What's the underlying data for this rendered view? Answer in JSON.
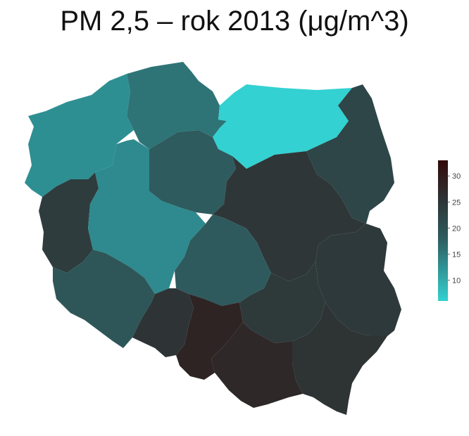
{
  "title": "PM 2,5 – rok 2013 (μg/m^3)",
  "colorbar": {
    "min": 6,
    "max": 33,
    "ticks": [
      "10",
      "15",
      "20",
      "25",
      "30"
    ],
    "tick_values": [
      10,
      15,
      20,
      25,
      30
    ],
    "colors": [
      "#33d1d1",
      "#2e5b5e",
      "#2e3638",
      "#330a0a"
    ]
  },
  "chart_data": {
    "type": "choropleth",
    "title": "PM 2,5 – rok 2013 (μg/m^3)",
    "regions": [
      {
        "color": "#2e8f93"
      },
      {
        "color": "#2e7477"
      },
      {
        "color": "#33d1d1"
      },
      {
        "color": "#2e4648"
      },
      {
        "color": "#2e5b5e"
      },
      {
        "color": "#2e3c3e"
      },
      {
        "color": "#2e8a8e"
      },
      {
        "color": "#2e3638"
      },
      {
        "color": "#2e393b"
      },
      {
        "color": "#2e5a5d"
      },
      {
        "color": "#2e5658"
      },
      {
        "color": "#2e3435"
      },
      {
        "color": "#2e2424"
      },
      {
        "color": "#2e393a"
      },
      {
        "color": "#2e3334"
      },
      {
        "color": "#2e2828"
      },
      {
        "color": "#2e0e0e"
      },
      {
        "color": "#330505"
      }
    ]
  }
}
